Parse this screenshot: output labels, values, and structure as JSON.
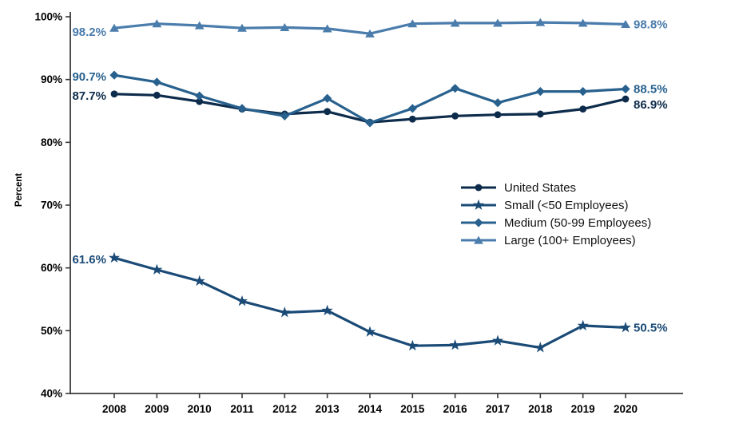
{
  "chart_data": {
    "type": "line",
    "title": "",
    "xlabel": "",
    "ylabel": "Percent",
    "grid": false,
    "legend_position": "center-right",
    "ylim": [
      40,
      100
    ],
    "yticks": [
      40,
      50,
      60,
      70,
      80,
      90,
      100
    ],
    "ytick_labels": [
      "40%",
      "50%",
      "60%",
      "70%",
      "80%",
      "90%",
      "100%"
    ],
    "x": [
      2008,
      2009,
      2010,
      2011,
      2012,
      2013,
      2014,
      2015,
      2016,
      2017,
      2018,
      2019,
      2020
    ],
    "xtick_labels": [
      "2008",
      "2009",
      "2010",
      "2011",
      "2012",
      "2013",
      "2014",
      "2015",
      "2016",
      "2017",
      "2018",
      "2019",
      "2020"
    ],
    "series": [
      {
        "name": "United States",
        "marker": "circle",
        "color": "#0d2b4b",
        "values": [
          87.7,
          87.5,
          86.5,
          85.3,
          84.5,
          84.9,
          83.2,
          83.7,
          84.2,
          84.4,
          84.5,
          85.3,
          86.9
        ],
        "start_label": "87.7%",
        "end_label": "86.9%"
      },
      {
        "name": "Small (<50 Employees)",
        "marker": "star",
        "color": "#1a4a76",
        "values": [
          61.6,
          59.7,
          57.9,
          54.7,
          52.9,
          53.2,
          49.8,
          47.6,
          47.7,
          48.4,
          47.3,
          50.8,
          50.5
        ],
        "start_label": "61.6%",
        "end_label": "50.5%"
      },
      {
        "name": "Medium (50-99 Employees)",
        "marker": "diamond",
        "color": "#28618e",
        "values": [
          90.7,
          89.6,
          87.4,
          85.4,
          84.2,
          87.0,
          83.1,
          85.4,
          88.6,
          86.3,
          88.1,
          88.1,
          88.5
        ],
        "start_label": "90.7%",
        "end_label": "88.5%"
      },
      {
        "name": "Large (100+ Employees)",
        "marker": "triangle",
        "color": "#4a7cac",
        "values": [
          98.2,
          98.9,
          98.6,
          98.2,
          98.3,
          98.1,
          97.3,
          98.9,
          99.0,
          99.0,
          99.1,
          99.0,
          98.8
        ],
        "start_label": "98.2%",
        "end_label": "98.8%"
      }
    ]
  }
}
